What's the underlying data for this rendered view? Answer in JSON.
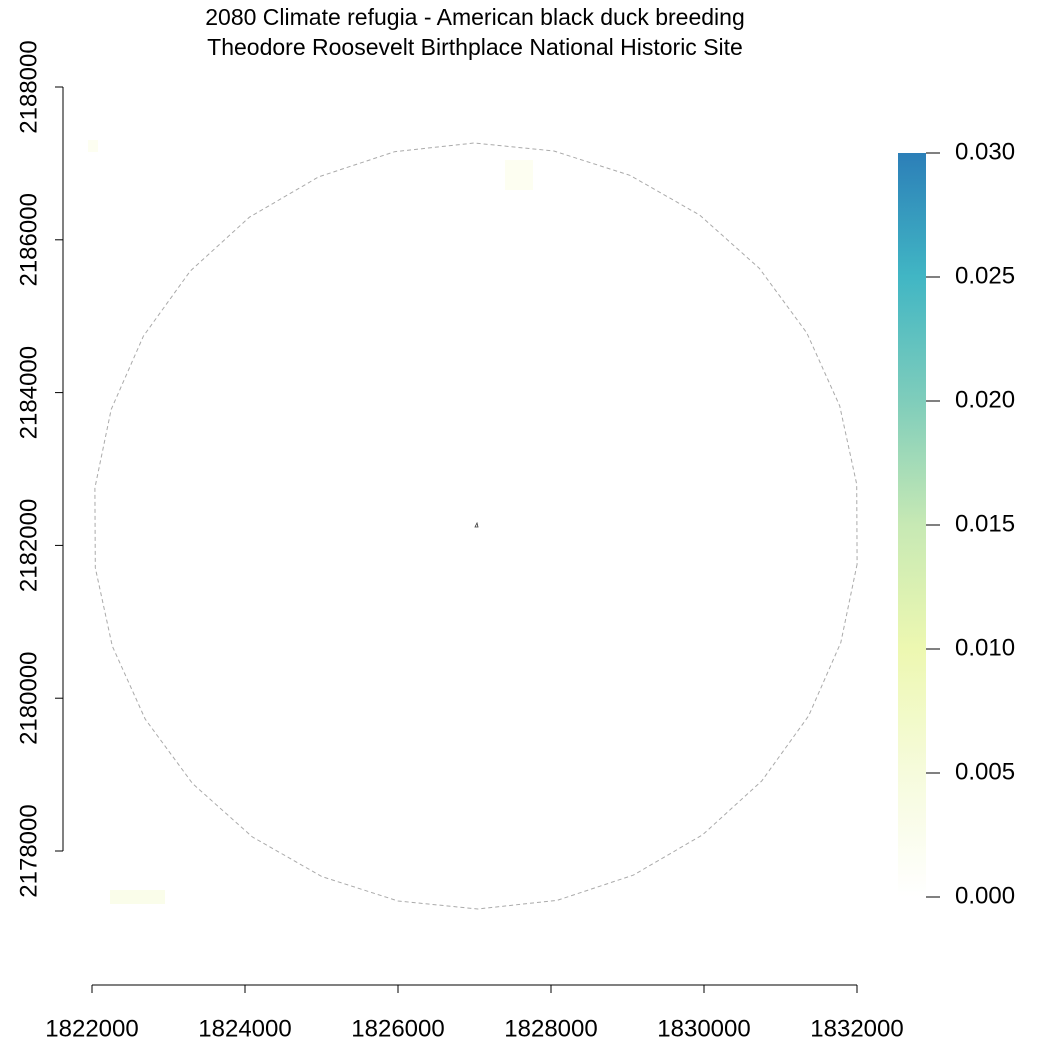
{
  "chart_data": {
    "type": "raster",
    "title": "2080 Climate refugia - American black duck breeding",
    "subtitle": "Theodore Roosevelt Birthplace National Historic Site",
    "xlim": [
      1822000,
      1832000
    ],
    "xticks": [
      1822000,
      1824000,
      1826000,
      1828000,
      1830000,
      1832000
    ],
    "ylim": [
      2178000,
      2188000
    ],
    "yticks": [
      2178000,
      2180000,
      2182000,
      2184000,
      2186000,
      2188000
    ],
    "colorbar": {
      "lim": [
        0,
        0.03
      ],
      "ticks": [
        {
          "value": 0,
          "label": "0.000"
        },
        {
          "value": 0.005,
          "label": "0.005"
        },
        {
          "value": 0.01,
          "label": "0.010"
        },
        {
          "value": 0.015,
          "label": "0.015"
        },
        {
          "value": 0.02,
          "label": "0.020"
        },
        {
          "value": 0.025,
          "label": "0.025"
        },
        {
          "value": 0.03,
          "label": "0.030"
        }
      ],
      "colors": [
        "#ffffff",
        "#f6fbdc",
        "#edf8b1",
        "#c7e9b4",
        "#7fcdbb",
        "#41b6c4",
        "#2c7fb8"
      ]
    }
  }
}
